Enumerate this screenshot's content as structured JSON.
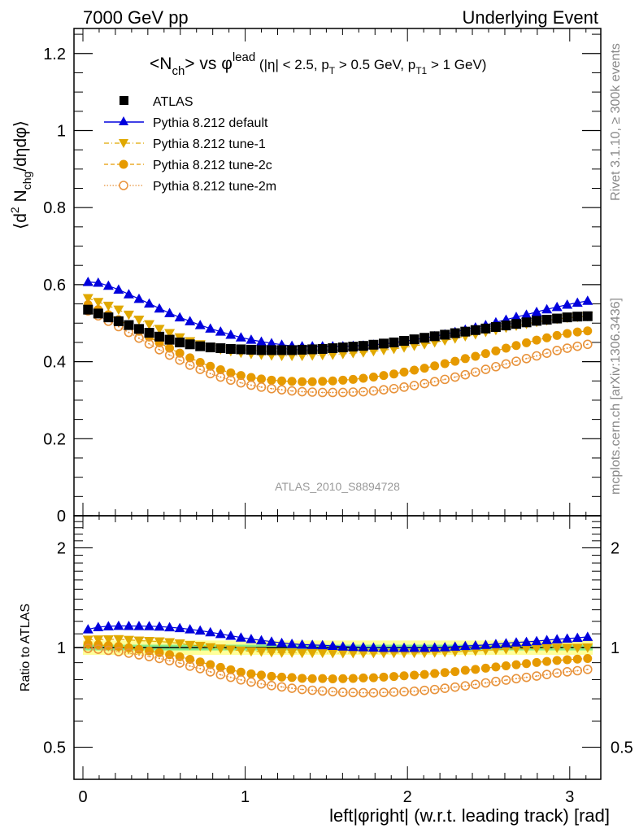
{
  "header": {
    "left": "7000 GeV pp",
    "right": "Underlying Event"
  },
  "side_labels": {
    "rivet": "Rivet 3.1.10, ≥ 300k events",
    "mcplots": "mcplots.cern.ch [arXiv:1306.3436]"
  },
  "chart_data": [
    {
      "type": "scatter",
      "panel": "main",
      "title": {
        "prefix": "<N",
        "prefix_sub": "ch",
        "middle": "> vs φ",
        "middle_sup": "lead",
        "cuts": " (|η| < 2.5, p",
        "cuts_sub1": "T",
        "cuts_mid": " > 0.5 GeV, p",
        "cuts_sub2": "T1",
        "cuts_end": " > 1 GeV)"
      },
      "ylabel": {
        "pre": "⟨d",
        "sup": "2",
        "mid": " N",
        "sub": "chg",
        "post": "/dηdφ⟩"
      },
      "watermark": "ATLAS_2010_S8894728",
      "xlim": [
        -0.055,
        3.2
      ],
      "ylim": [
        0,
        1.265
      ],
      "yticks": [
        0,
        0.2,
        0.4,
        0.6,
        0.8,
        1,
        1.2
      ],
      "ytick_labels": [
        "0",
        "0.2",
        "0.4",
        "0.6",
        "0.8",
        "1",
        "1.2"
      ],
      "xticks": [
        0,
        1,
        2,
        3
      ],
      "x": "bin centers: (i + 0.5) * pi / 50, i = 0..49",
      "series": [
        {
          "name": "ATLAS",
          "marker": "square",
          "color": "#000000",
          "values": [
            0.535,
            0.525,
            0.515,
            0.505,
            0.495,
            0.485,
            0.475,
            0.465,
            0.457,
            0.45,
            0.445,
            0.44,
            0.437,
            0.435,
            0.433,
            0.432,
            0.431,
            0.43,
            0.43,
            0.43,
            0.43,
            0.431,
            0.432,
            0.433,
            0.435,
            0.437,
            0.439,
            0.441,
            0.444,
            0.447,
            0.45,
            0.454,
            0.458,
            0.462,
            0.466,
            0.47,
            0.474,
            0.478,
            0.482,
            0.486,
            0.49,
            0.494,
            0.498,
            0.502,
            0.506,
            0.509,
            0.512,
            0.515,
            0.517,
            0.518
          ]
        },
        {
          "name": "Pythia 8.212 default",
          "marker": "triangle-up",
          "color": "#0000dd",
          "line": "solid",
          "values": [
            0.607,
            0.605,
            0.597,
            0.587,
            0.575,
            0.563,
            0.551,
            0.538,
            0.526,
            0.515,
            0.505,
            0.495,
            0.486,
            0.478,
            0.47,
            0.463,
            0.457,
            0.452,
            0.448,
            0.444,
            0.441,
            0.44,
            0.44,
            0.44,
            0.44,
            0.44,
            0.441,
            0.442,
            0.444,
            0.446,
            0.449,
            0.453,
            0.457,
            0.461,
            0.466,
            0.471,
            0.477,
            0.483,
            0.489,
            0.495,
            0.502,
            0.509,
            0.516,
            0.522,
            0.529,
            0.536,
            0.542,
            0.548,
            0.553,
            0.558
          ]
        },
        {
          "name": "Pythia 8.212 tune-1",
          "marker": "triangle-down",
          "color": "#e0a800",
          "line": "dashdot",
          "values": [
            0.565,
            0.555,
            0.545,
            0.535,
            0.522,
            0.509,
            0.497,
            0.485,
            0.474,
            0.463,
            0.453,
            0.445,
            0.438,
            0.432,
            0.427,
            0.423,
            0.42,
            0.418,
            0.416,
            0.415,
            0.415,
            0.415,
            0.416,
            0.417,
            0.418,
            0.42,
            0.422,
            0.424,
            0.427,
            0.43,
            0.433,
            0.437,
            0.441,
            0.445,
            0.45,
            0.455,
            0.46,
            0.466,
            0.471,
            0.477,
            0.482,
            0.488,
            0.493,
            0.498,
            0.503,
            0.507,
            0.511,
            0.514,
            0.516,
            0.518
          ]
        },
        {
          "name": "Pythia 8.212 tune-2c",
          "marker": "circle-filled",
          "color": "#e69a00",
          "line": "dashed",
          "values": [
            0.548,
            0.535,
            0.522,
            0.509,
            0.494,
            0.479,
            0.464,
            0.449,
            0.435,
            0.422,
            0.41,
            0.398,
            0.388,
            0.379,
            0.371,
            0.364,
            0.359,
            0.355,
            0.352,
            0.35,
            0.349,
            0.348,
            0.348,
            0.349,
            0.35,
            0.352,
            0.354,
            0.357,
            0.36,
            0.364,
            0.368,
            0.373,
            0.378,
            0.383,
            0.389,
            0.395,
            0.401,
            0.408,
            0.414,
            0.421,
            0.428,
            0.435,
            0.442,
            0.449,
            0.456,
            0.462,
            0.468,
            0.473,
            0.477,
            0.48
          ]
        },
        {
          "name": "Pythia 8.212 tune-2m",
          "marker": "circle-open",
          "color": "#e8923a",
          "line": "dotted",
          "values": [
            0.532,
            0.519,
            0.505,
            0.491,
            0.476,
            0.461,
            0.446,
            0.431,
            0.417,
            0.404,
            0.391,
            0.38,
            0.369,
            0.36,
            0.352,
            0.345,
            0.339,
            0.334,
            0.33,
            0.327,
            0.324,
            0.322,
            0.321,
            0.32,
            0.32,
            0.32,
            0.321,
            0.322,
            0.324,
            0.327,
            0.33,
            0.334,
            0.338,
            0.343,
            0.348,
            0.354,
            0.36,
            0.366,
            0.373,
            0.38,
            0.387,
            0.394,
            0.401,
            0.408,
            0.415,
            0.422,
            0.429,
            0.435,
            0.44,
            0.445
          ]
        }
      ],
      "legend": {
        "placement": "top-left",
        "entries": [
          "ATLAS",
          "Pythia 8.212 default",
          "Pythia 8.212 tune-1",
          "Pythia 8.212 tune-2c",
          "Pythia 8.212 tune-2m"
        ]
      }
    },
    {
      "type": "scatter",
      "panel": "ratio",
      "ylabel": "Ratio to ATLAS",
      "xlabel": "left|φright| (w.r.t. leading track) [rad]",
      "yscale": "log",
      "ylim": [
        0.4,
        2.5
      ],
      "yticks": [
        0.5,
        1,
        2
      ],
      "ytick_labels": [
        "0.5",
        "1",
        "2"
      ],
      "xticks": [
        0,
        1,
        2,
        3
      ],
      "xtick_labels": [
        "0",
        "1",
        "2",
        "3"
      ],
      "reference": 1,
      "uncertainty_band": {
        "inner_color": "#88ee88",
        "outer_color": "#ffff99",
        "inner_halfwidth": 0.02,
        "outer_halfwidth": 0.05
      },
      "note": "ratio values = model / ATLAS, per bin"
    }
  ]
}
